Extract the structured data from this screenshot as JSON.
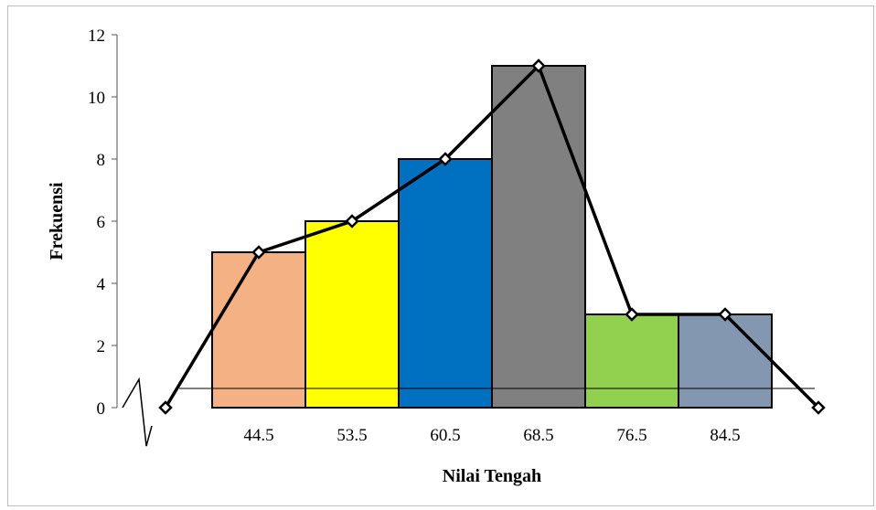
{
  "chart_data": {
    "type": "bar",
    "title": "",
    "xlabel": "Nilai Tengah",
    "ylabel": "Frekuensi",
    "categories": [
      "44.5",
      "53.5",
      "60.5",
      "68.5",
      "76.5",
      "84.5"
    ],
    "values": [
      5,
      6,
      8,
      11,
      3,
      3
    ],
    "bar_colors": [
      "#F4B183",
      "#FFFF00",
      "#0070C0",
      "#808080",
      "#92D050",
      "#8497B0"
    ],
    "ylim": [
      0,
      12
    ],
    "yticks": [
      0,
      2,
      4,
      6,
      8,
      10,
      12
    ],
    "grid": false,
    "frequency_polygon": {
      "values": [
        0,
        5,
        6,
        8,
        11,
        3,
        3,
        0
      ],
      "line_color": "#000000",
      "marker": "diamond"
    }
  }
}
